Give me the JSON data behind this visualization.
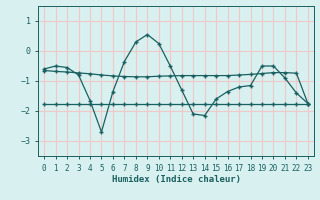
{
  "xlabel": "Humidex (Indice chaleur)",
  "bg_color": "#d8f0f0",
  "plot_bg_color": "#d8f0f0",
  "grid_color": "#f0c8c8",
  "line_color": "#1a6060",
  "spine_color": "#1a6060",
  "ylim": [
    -3.5,
    1.5
  ],
  "xlim": [
    -0.5,
    23.5
  ],
  "yticks": [
    -3,
    -2,
    -1,
    0,
    1
  ],
  "x": [
    0,
    1,
    2,
    3,
    4,
    5,
    6,
    7,
    8,
    9,
    10,
    11,
    12,
    13,
    14,
    15,
    16,
    17,
    18,
    19,
    20,
    21,
    22,
    23
  ],
  "line1_y": [
    -0.6,
    -0.5,
    -0.55,
    -0.8,
    -1.65,
    -2.7,
    -1.35,
    -0.35,
    0.3,
    0.55,
    0.25,
    -0.5,
    -1.3,
    -2.1,
    -2.15,
    -1.6,
    -1.35,
    -1.2,
    -1.15,
    -0.5,
    -0.5,
    -0.9,
    -1.4,
    -1.75
  ],
  "line2_y": [
    -0.65,
    -0.68,
    -0.7,
    -0.73,
    -0.76,
    -0.8,
    -0.83,
    -0.85,
    -0.86,
    -0.86,
    -0.84,
    -0.83,
    -0.82,
    -0.82,
    -0.82,
    -0.82,
    -0.82,
    -0.8,
    -0.78,
    -0.75,
    -0.72,
    -0.72,
    -0.74,
    -1.75
  ],
  "line3_y": [
    -1.75,
    -1.75,
    -1.75,
    -1.75,
    -1.75,
    -1.75,
    -1.75,
    -1.75,
    -1.75,
    -1.75,
    -1.75,
    -1.75,
    -1.75,
    -1.75,
    -1.75,
    -1.75,
    -1.75,
    -1.75,
    -1.75,
    -1.75,
    -1.75,
    -1.75,
    -1.75,
    -1.75
  ],
  "xlabel_fontsize": 6.5,
  "tick_fontsize": 5.5
}
